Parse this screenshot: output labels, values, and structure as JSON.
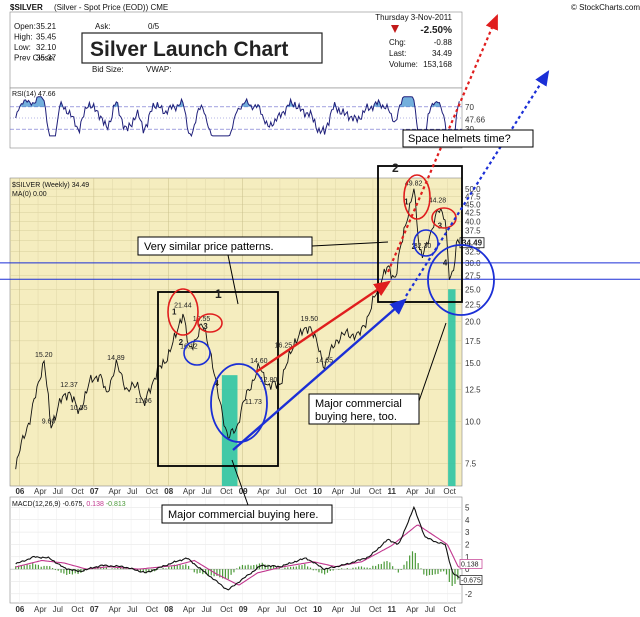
{
  "chart_data": {
    "type": "line",
    "header": {
      "symbol": "$SILVER",
      "description": "(Silver - Spot Price (EOD)) CME",
      "source": "© StockCharts.com",
      "date": "Thursday 3-Nov-2011",
      "rows_left": [
        {
          "k": "Open:",
          "v": "35.21"
        },
        {
          "k": "High:",
          "v": "35.45"
        },
        {
          "k": "Low:",
          "v": "32.10"
        },
        {
          "k": "Prev Close:",
          "v": "35.37"
        }
      ],
      "ask_label": "Ask:",
      "ask_value": "0/5",
      "bid_label": "Bid Size:",
      "vwap_label": "VWAP:",
      "change_pct": "-2.50%",
      "rows_right": [
        {
          "k": "Chg:",
          "v": "-0.88"
        },
        {
          "k": "Last:",
          "v": "34.49"
        },
        {
          "k": "Volume:",
          "v": "153,168"
        }
      ]
    },
    "title_box": "Silver Launch Chart",
    "rsi": {
      "label": "RSI(14) 47.66",
      "levels": [
        70,
        30
      ],
      "tick_labels": [
        "70",
        "30"
      ],
      "last_label": "47.66"
    },
    "price_panel": {
      "label": "$SILVER (Weekly) 34.49",
      "ma_label": "MA(0) 0.00",
      "last_value": 34.49,
      "last_label": "34.49",
      "y_ticks": [
        7.5,
        10.0,
        12.5,
        15.0,
        17.5,
        20.0,
        22.5,
        25.0,
        27.5,
        30.0,
        32.5,
        35.0,
        37.5,
        40.0,
        42.5,
        45.0,
        47.5,
        50.0
      ],
      "y_tick_labels": [
        "7.5",
        "10.0",
        "12.5",
        "15.0",
        "17.5",
        "20.0",
        "22.5",
        "25.0",
        "27.5",
        "30.0",
        "32.5",
        "35.0",
        "37.5",
        "40.0",
        "42.5",
        "45.0",
        "47.5",
        "50.0"
      ],
      "ylim": [
        6.5,
        52.5
      ],
      "log_scale": true,
      "x_range": [
        2005.9,
        2011.92
      ],
      "anchors": [
        {
          "t": 2005.95,
          "v": 7.2
        },
        {
          "t": 2006.05,
          "v": 9.0
        },
        {
          "t": 2006.15,
          "v": 10.2
        },
        {
          "t": 2006.33,
          "v": 15.2
        },
        {
          "t": 2006.42,
          "v": 9.6
        },
        {
          "t": 2006.55,
          "v": 11.5
        },
        {
          "t": 2006.67,
          "v": 12.37
        },
        {
          "t": 2006.8,
          "v": 10.55
        },
        {
          "t": 2006.95,
          "v": 13.2
        },
        {
          "t": 2007.08,
          "v": 13.9
        },
        {
          "t": 2007.17,
          "v": 12.0
        },
        {
          "t": 2007.3,
          "v": 14.89
        },
        {
          "t": 2007.45,
          "v": 12.4
        },
        {
          "t": 2007.6,
          "v": 13.0
        },
        {
          "t": 2007.67,
          "v": 11.06
        },
        {
          "t": 2007.85,
          "v": 14.2
        },
        {
          "t": 2007.95,
          "v": 15.0
        },
        {
          "t": 2008.1,
          "v": 18.0
        },
        {
          "t": 2008.2,
          "v": 21.44
        },
        {
          "t": 2008.28,
          "v": 16.12
        },
        {
          "t": 2008.38,
          "v": 18.0
        },
        {
          "t": 2008.45,
          "v": 19.55
        },
        {
          "t": 2008.55,
          "v": 17.0
        },
        {
          "t": 2008.65,
          "v": 12.5
        },
        {
          "t": 2008.8,
          "v": 8.9
        },
        {
          "t": 2008.92,
          "v": 9.6
        },
        {
          "t": 2009.0,
          "v": 11.2
        },
        {
          "t": 2009.15,
          "v": 13.5
        },
        {
          "t": 2009.22,
          "v": 14.6
        },
        {
          "t": 2009.35,
          "v": 12.8
        },
        {
          "t": 2009.5,
          "v": 13.0
        },
        {
          "t": 2009.6,
          "v": 15.0
        },
        {
          "t": 2009.7,
          "v": 17.5
        },
        {
          "t": 2009.9,
          "v": 19.5
        },
        {
          "t": 2010.1,
          "v": 14.65
        },
        {
          "t": 2010.25,
          "v": 17.5
        },
        {
          "t": 2010.4,
          "v": 18.5
        },
        {
          "t": 2010.55,
          "v": 18.0
        },
        {
          "t": 2010.7,
          "v": 21.0
        },
        {
          "t": 2010.85,
          "v": 26.5
        },
        {
          "t": 2010.95,
          "v": 29.0
        },
        {
          "t": 2011.05,
          "v": 27.0
        },
        {
          "t": 2011.15,
          "v": 35.5
        },
        {
          "t": 2011.3,
          "v": 49.82
        },
        {
          "t": 2011.37,
          "v": 33.0
        },
        {
          "t": 2011.42,
          "v": 32.3
        },
        {
          "t": 2011.52,
          "v": 35.5
        },
        {
          "t": 2011.62,
          "v": 44.28
        },
        {
          "t": 2011.72,
          "v": 40.0
        },
        {
          "t": 2011.78,
          "v": 27.0
        },
        {
          "t": 2011.84,
          "v": 29.0
        },
        {
          "t": 2011.88,
          "v": 34.49
        }
      ],
      "value_labels": [
        {
          "t": 2006.33,
          "v": 15.2,
          "text": "15.20"
        },
        {
          "t": 2006.42,
          "v": 9.6,
          "text": "9.60"
        },
        {
          "t": 2006.67,
          "v": 12.37,
          "text": "12.37"
        },
        {
          "t": 2006.8,
          "v": 10.55,
          "text": "10.55"
        },
        {
          "t": 2007.3,
          "v": 14.89,
          "text": "14.89"
        },
        {
          "t": 2007.67,
          "v": 11.06,
          "text": "11.06"
        },
        {
          "t": 2008.2,
          "v": 21.44,
          "text": "21.44"
        },
        {
          "t": 2008.28,
          "v": 16.12,
          "text": "16.12"
        },
        {
          "t": 2008.45,
          "v": 19.55,
          "text": "19.55"
        },
        {
          "t": 2009.22,
          "v": 14.6,
          "text": "14.60"
        },
        {
          "t": 2009.35,
          "v": 12.8,
          "text": "12.80"
        },
        {
          "t": 2009.55,
          "v": 16.25,
          "text": "16.25"
        },
        {
          "t": 2009.9,
          "v": 19.5,
          "text": "19.50"
        },
        {
          "t": 2010.1,
          "v": 14.65,
          "text": "14.65"
        },
        {
          "t": 2011.3,
          "v": 49.82,
          "text": "49.82"
        },
        {
          "t": 2011.42,
          "v": 32.3,
          "text": "32.30"
        },
        {
          "t": 2011.62,
          "v": 44.28,
          "text": "44.28"
        },
        {
          "t": 2009.15,
          "v": 11.0,
          "text": "11.73"
        }
      ],
      "wave_labels": [
        {
          "t": 2008.13,
          "v": 21.0,
          "text": "1"
        },
        {
          "t": 2008.22,
          "v": 17.0,
          "text": "2"
        },
        {
          "t": 2008.55,
          "v": 19.0,
          "text": "3"
        },
        {
          "t": 2008.7,
          "v": 12.8,
          "text": "4"
        },
        {
          "t": 2011.25,
          "v": 45.0,
          "text": "1"
        },
        {
          "t": 2011.35,
          "v": 33.0,
          "text": "2"
        },
        {
          "t": 2011.7,
          "v": 38.0,
          "text": "3"
        },
        {
          "t": 2011.77,
          "v": 29.5,
          "text": "4"
        }
      ],
      "box_labels": [
        "1",
        "2"
      ],
      "horizontal_levels": [
        30.0,
        26.8
      ],
      "x_ticks": [
        {
          "t": 2006.0,
          "label": "06",
          "major": true
        },
        {
          "t": 2006.25,
          "label": "Apr"
        },
        {
          "t": 2006.5,
          "label": "Jul"
        },
        {
          "t": 2006.75,
          "label": "Oct"
        },
        {
          "t": 2007.0,
          "label": "07",
          "major": true
        },
        {
          "t": 2007.25,
          "label": "Apr"
        },
        {
          "t": 2007.5,
          "label": "Jul"
        },
        {
          "t": 2007.75,
          "label": "Oct"
        },
        {
          "t": 2008.0,
          "label": "08",
          "major": true
        },
        {
          "t": 2008.25,
          "label": "Apr"
        },
        {
          "t": 2008.5,
          "label": "Jul"
        },
        {
          "t": 2008.75,
          "label": "Oct"
        },
        {
          "t": 2009.0,
          "label": "09",
          "major": true
        },
        {
          "t": 2009.25,
          "label": "Apr"
        },
        {
          "t": 2009.5,
          "label": "Jul"
        },
        {
          "t": 2009.75,
          "label": "Oct"
        },
        {
          "t": 2010.0,
          "label": "10",
          "major": true
        },
        {
          "t": 2010.25,
          "label": "Apr"
        },
        {
          "t": 2010.5,
          "label": "Jul"
        },
        {
          "t": 2010.75,
          "label": "Oct"
        },
        {
          "t": 2011.0,
          "label": "11",
          "major": true
        },
        {
          "t": 2011.25,
          "label": "Apr"
        },
        {
          "t": 2011.5,
          "label": "Jul"
        },
        {
          "t": 2011.75,
          "label": "Oct"
        }
      ]
    },
    "macd": {
      "label": "MACD(12,26,9) -0.675, 0.138, -0.813",
      "label_parts": [
        "MACD(12,26,9)",
        "-0.675,",
        "0.138",
        "-0.813"
      ],
      "y_ticks": [
        -2,
        -1,
        0,
        1,
        2,
        3,
        4,
        5
      ],
      "y_tick_labels": [
        "-2",
        "-1",
        "0",
        "1",
        "2",
        "3",
        "4",
        "5"
      ],
      "ylim": [
        -2.5,
        5.6
      ],
      "flag_values": [
        0.138,
        -0.675
      ],
      "flag_labels": [
        "0.138",
        "-0.675"
      ],
      "macd_anchors": [
        {
          "t": 2005.9,
          "v": 0.3
        },
        {
          "t": 2006.2,
          "v": 1.0
        },
        {
          "t": 2006.4,
          "v": 0.9
        },
        {
          "t": 2006.6,
          "v": 0.1
        },
        {
          "t": 2006.8,
          "v": -0.2
        },
        {
          "t": 2007.1,
          "v": 0.3
        },
        {
          "t": 2007.4,
          "v": 0.2
        },
        {
          "t": 2007.7,
          "v": -0.3
        },
        {
          "t": 2008.05,
          "v": 0.5
        },
        {
          "t": 2008.25,
          "v": 0.9
        },
        {
          "t": 2008.5,
          "v": -0.3
        },
        {
          "t": 2008.8,
          "v": -1.7
        },
        {
          "t": 2009.0,
          "v": -0.8
        },
        {
          "t": 2009.25,
          "v": 0.3
        },
        {
          "t": 2009.5,
          "v": 0.2
        },
        {
          "t": 2009.85,
          "v": 0.9
        },
        {
          "t": 2010.1,
          "v": 0.0
        },
        {
          "t": 2010.4,
          "v": 0.4
        },
        {
          "t": 2010.7,
          "v": 1.0
        },
        {
          "t": 2010.95,
          "v": 2.4
        },
        {
          "t": 2011.1,
          "v": 2.0
        },
        {
          "t": 2011.3,
          "v": 5.0
        },
        {
          "t": 2011.45,
          "v": 2.6
        },
        {
          "t": 2011.6,
          "v": 2.2
        },
        {
          "t": 2011.72,
          "v": 2.0
        },
        {
          "t": 2011.82,
          "v": -0.3
        },
        {
          "t": 2011.9,
          "v": -0.675
        }
      ],
      "signal_anchors": [
        {
          "t": 2005.9,
          "v": 0.1
        },
        {
          "t": 2006.3,
          "v": 0.7
        },
        {
          "t": 2006.6,
          "v": 0.5
        },
        {
          "t": 2006.9,
          "v": 0.0
        },
        {
          "t": 2007.2,
          "v": 0.2
        },
        {
          "t": 2007.6,
          "v": 0.0
        },
        {
          "t": 2008.1,
          "v": 0.3
        },
        {
          "t": 2008.35,
          "v": 0.7
        },
        {
          "t": 2008.65,
          "v": -0.4
        },
        {
          "t": 2008.95,
          "v": -1.3
        },
        {
          "t": 2009.2,
          "v": -0.3
        },
        {
          "t": 2009.55,
          "v": 0.2
        },
        {
          "t": 2009.95,
          "v": 0.6
        },
        {
          "t": 2010.25,
          "v": 0.2
        },
        {
          "t": 2010.6,
          "v": 0.6
        },
        {
          "t": 2011.0,
          "v": 1.9
        },
        {
          "t": 2011.35,
          "v": 3.6
        },
        {
          "t": 2011.55,
          "v": 2.8
        },
        {
          "t": 2011.75,
          "v": 2.0
        },
        {
          "t": 2011.9,
          "v": 0.138
        }
      ]
    },
    "annotations": [
      {
        "id": "similar",
        "text": "Very similar price patterns."
      },
      {
        "id": "major08",
        "text": "Major commercial buying here."
      },
      {
        "id": "major11",
        "lines": [
          "Major commercial",
          "buying here, too."
        ]
      },
      {
        "id": "space",
        "text": "Space helmets time?"
      }
    ],
    "colors": {
      "price_bg": "#f5edbf",
      "rsi_line": "#1f1f7a",
      "rsi_fill": "#5aa1d6",
      "price_line": "#111111",
      "highlight_bar": "#2fc4a4",
      "red_annot": "#e01e1e",
      "blue_annot": "#1b2fd6",
      "macd_line": "#111111",
      "signal_line": "#c2388f",
      "hist_fill": "#4c9a3a"
    }
  }
}
